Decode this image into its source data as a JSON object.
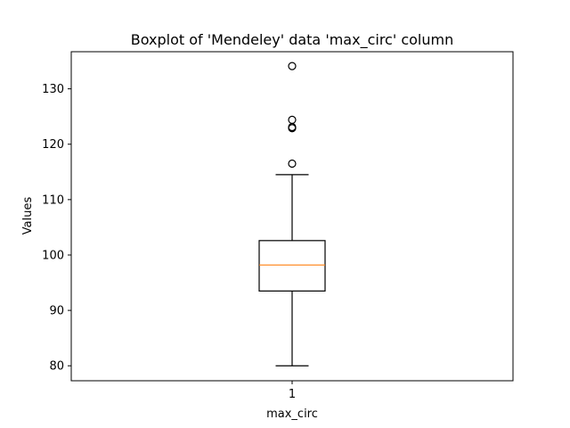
{
  "chart_data": {
    "type": "boxplot",
    "title": "Boxplot of 'Mendeley' data 'max_circ' column",
    "xlabel": "max_circ",
    "ylabel": "Values",
    "categories": [
      "1"
    ],
    "ylim": [
      77.3,
      136.7
    ],
    "yticks": [
      80,
      90,
      100,
      110,
      120,
      130
    ],
    "grid": false,
    "box": {
      "whisker_low": 80.0,
      "q1": 93.5,
      "median": 98.2,
      "q3": 102.6,
      "whisker_high": 114.5,
      "outliers": [
        116.5,
        122.9,
        123.1,
        124.4,
        134.1
      ]
    },
    "colors": {
      "box": "#000000",
      "median": "#ff7f0e",
      "outlier": "#000000"
    }
  }
}
